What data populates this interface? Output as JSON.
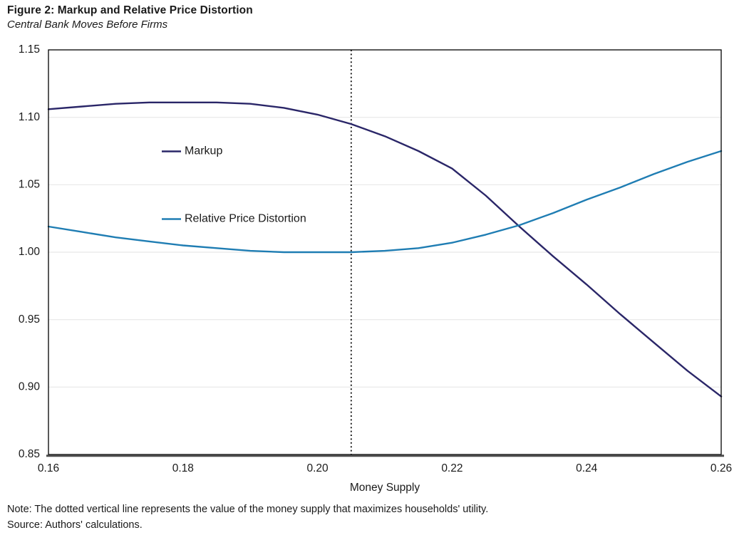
{
  "figure": {
    "title": "Figure 2: Markup and Relative Price Distortion",
    "subtitle": "Central Bank Moves Before Firms",
    "note": "Note: The dotted vertical line represents the value of the money supply that maximizes households' utility.",
    "source": "Source: Authors' calculations."
  },
  "chart_data": {
    "type": "line",
    "title": "Figure 2: Markup and Relative Price Distortion",
    "subtitle": "Central Bank Moves Before Firms",
    "xlabel": "Money Supply",
    "ylabel": "",
    "xlim": [
      0.16,
      0.26
    ],
    "ylim": [
      0.85,
      1.15
    ],
    "x_ticks": [
      0.16,
      0.18,
      0.2,
      0.22,
      0.24,
      0.26
    ],
    "y_ticks": [
      0.85,
      0.9,
      0.95,
      1.0,
      1.05,
      1.1,
      1.15
    ],
    "grid": "horizontal",
    "gridline_color": "#e7e7e7",
    "axis_color": "#000000",
    "baseline_color": "#4d4d4d",
    "legend_position": "inside-upper-left",
    "vline": {
      "x": 0.205,
      "style": "dotted",
      "color": "#000000",
      "meaning": "value of the money supply that maximizes households' utility"
    },
    "x": [
      0.16,
      0.165,
      0.17,
      0.175,
      0.18,
      0.185,
      0.19,
      0.195,
      0.2,
      0.205,
      0.21,
      0.215,
      0.22,
      0.225,
      0.23,
      0.235,
      0.24,
      0.245,
      0.25,
      0.255,
      0.26
    ],
    "series": [
      {
        "name": "Markup",
        "color": "#2a2668",
        "values": [
          1.106,
          1.108,
          1.11,
          1.111,
          1.111,
          1.111,
          1.11,
          1.107,
          1.102,
          1.095,
          1.086,
          1.075,
          1.062,
          1.042,
          1.019,
          0.997,
          0.976,
          0.954,
          0.933,
          0.912,
          0.893
        ]
      },
      {
        "name": "Relative Price Distortion",
        "color": "#1f7db3",
        "values": [
          1.019,
          1.015,
          1.011,
          1.008,
          1.005,
          1.003,
          1.001,
          1.0,
          1.0,
          1.0,
          1.001,
          1.003,
          1.007,
          1.013,
          1.02,
          1.029,
          1.039,
          1.048,
          1.058,
          1.067,
          1.075
        ]
      }
    ]
  }
}
